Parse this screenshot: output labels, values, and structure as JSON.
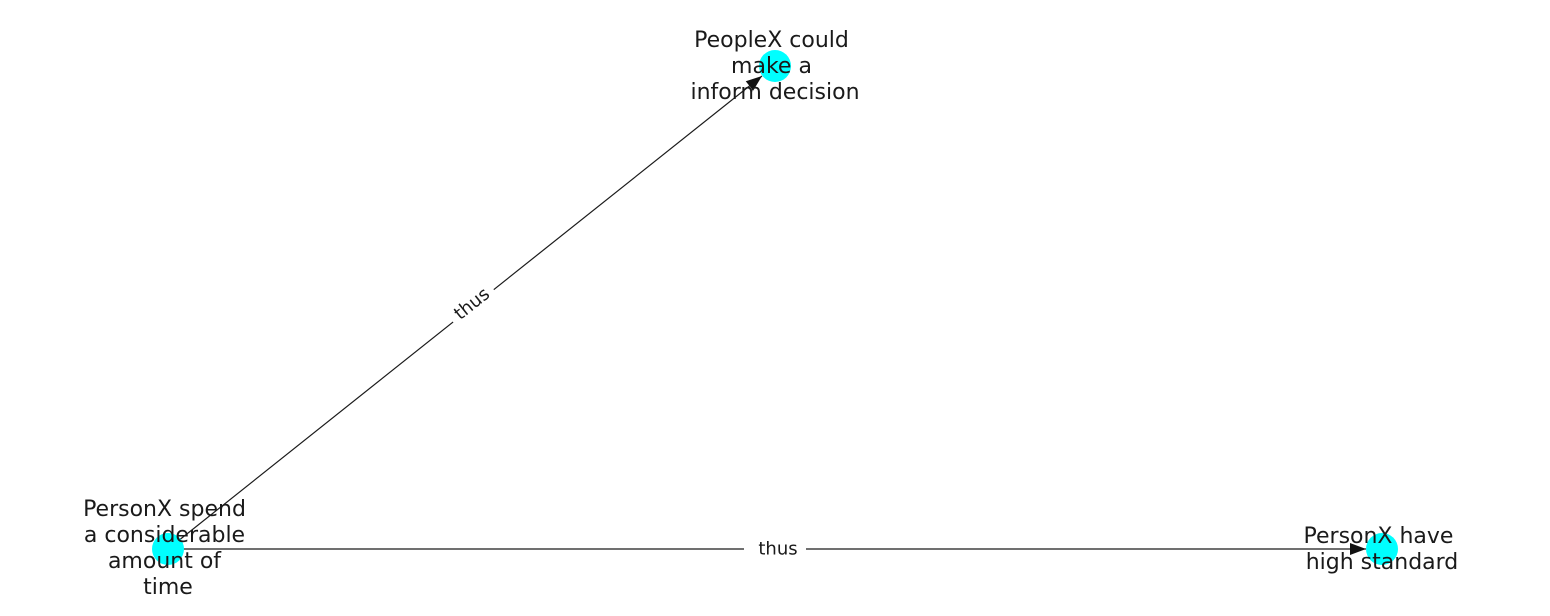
{
  "diagram": {
    "type": "directed-graph",
    "node_color": "#00ffff",
    "edge_color": "#1a1a1a",
    "nodes": [
      {
        "id": "n1",
        "label_lines": [
          "PersonX spend",
          "a considerable",
          "amount of",
          "time"
        ]
      },
      {
        "id": "n2",
        "label_lines": [
          "PeopleX could",
          "make a",
          "inform decision"
        ]
      },
      {
        "id": "n3",
        "label_lines": [
          "PersonX have",
          "high standard"
        ]
      }
    ],
    "edges": [
      {
        "from": "n1",
        "to": "n2",
        "label": "thus"
      },
      {
        "from": "n1",
        "to": "n3",
        "label": "thus"
      }
    ]
  }
}
